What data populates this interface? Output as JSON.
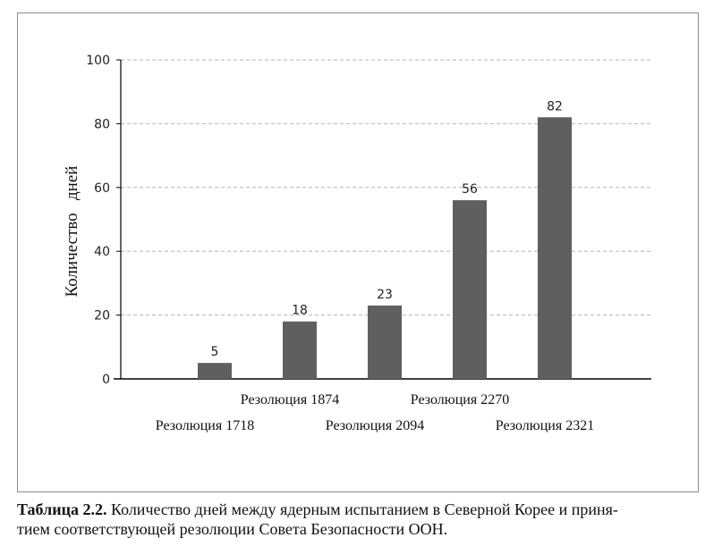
{
  "caption": {
    "label": "Таблица 2.2.",
    "line1": "Количество дней между ядерным испытанием в Северной Корее и приня-",
    "line2": "тием соответствующей резолюции Совета Безопасности ООН."
  },
  "chart_data": {
    "type": "bar",
    "ylabel": "Количество   дней",
    "xlabel": "",
    "ylim": [
      0,
      100
    ],
    "yticks": [
      0,
      20,
      40,
      60,
      80,
      100
    ],
    "grid": true,
    "categories": [
      "Резолюция 1718",
      "Резолюция 1874",
      "Резолюция 2094",
      "Резолюция 2270",
      "Резолюция 2321"
    ],
    "values": [
      5,
      18,
      23,
      56,
      82
    ],
    "colors": {
      "bar": "#5f5f5f",
      "grid": "#b4b4b4",
      "axis": "#000000"
    }
  }
}
